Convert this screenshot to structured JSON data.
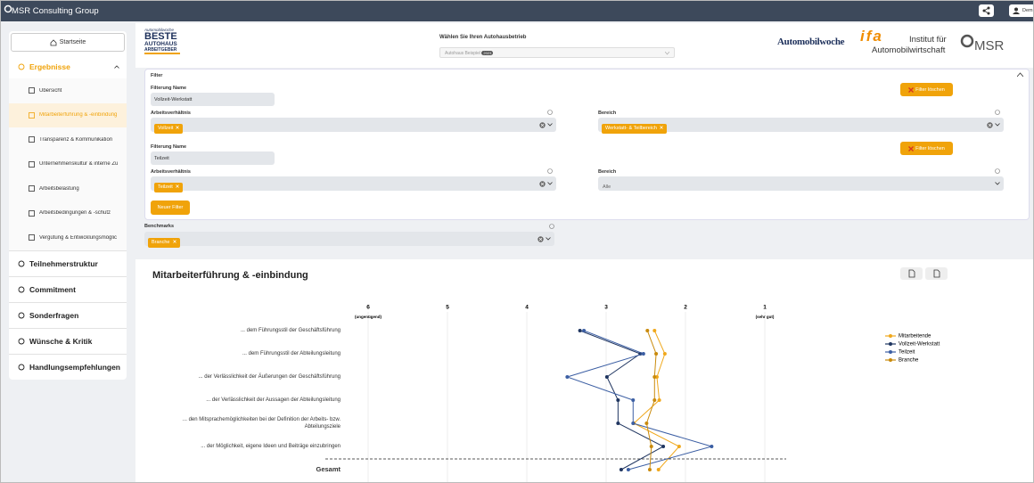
{
  "topbar": {
    "brand": "MSR Consulting Group",
    "user": "Dem"
  },
  "sidebar": {
    "home": "Startseite",
    "sections": [
      {
        "label": "Ergebnisse",
        "items": [
          {
            "label": "Übersicht"
          },
          {
            "label": "Mitarbeiterführung & -einbindung",
            "active": true
          },
          {
            "label": "Transparenz & Kommunikation"
          },
          {
            "label": "Unternehmenskultur & interne Zu"
          },
          {
            "label": "Arbeitsbelastung"
          },
          {
            "label": "Arbeitsbedingungen & -schutz"
          },
          {
            "label": "Vergütung & Entwicklungsmöglic"
          }
        ]
      },
      {
        "label": "Teilnehmerstruktur"
      },
      {
        "label": "Commitment"
      },
      {
        "label": "Sonderfragen"
      },
      {
        "label": "Wünsche & Kritik"
      },
      {
        "label": "Handlungsempfehlungen"
      }
    ]
  },
  "header": {
    "logo_left": [
      "Automobilwoche",
      "BESTE",
      "AUTOHAUS",
      "ARBEITGEBER"
    ],
    "select_label": "Wählen Sie Ihren Autohausbetrieb",
    "select_value": "Autohaus Beispiel",
    "select_badge": "2023",
    "logo_aw": "Automobilwoche",
    "logo_ifa": "ifa",
    "logo_ifa_line1": "Institut für",
    "logo_ifa_line2": "Automobilwirtschaft",
    "logo_msr": "MSR"
  },
  "filter": {
    "title": "Filter",
    "filters": [
      {
        "name_label": "Filterung Name",
        "name": "Vollzeit-Werkstatt",
        "delete": "Filter löschen",
        "fields": [
          {
            "label": "Arbeitsverhältnis",
            "chips": [
              "Vollzeit"
            ]
          },
          {
            "label": "Bereich",
            "chips": [
              "Werkstatt- & Teilbereich"
            ]
          }
        ]
      },
      {
        "name_label": "Filterung Name",
        "name": "Teilzeit",
        "delete": "Filter löschen",
        "fields": [
          {
            "label": "Arbeitsverhältnis",
            "chips": [
              "Teilzeit"
            ]
          },
          {
            "label": "Bereich",
            "value": "Alle"
          }
        ]
      }
    ],
    "new_filter": "Neuer Filter"
  },
  "benchmarks": {
    "label": "Benchmarks",
    "chips": [
      "Branche"
    ]
  },
  "chart_data": {
    "type": "line",
    "title": "Mitarbeiterführung & -einbindung",
    "categories": [
      "... dem Führungsstil der Geschäftsführung",
      "... dem Führungsstil der Abteilungsleitung",
      "... der Verlässlichkeit der Äußerungen der Geschäftsführung",
      "... der Verlässlichkeit der Aussagen der Abteilungsleitung",
      "... den Mitsprachemöglichkeiten bei der Definition der Arbeits- bzw. Abteilungsziele",
      "... der Möglichkeit, eigene Ideen und Beiträge einzubringen",
      "Gesamt"
    ],
    "xlim": [
      6,
      1
    ],
    "xticks": [
      6,
      5,
      4,
      3,
      2,
      1
    ],
    "xtick_notes": [
      {
        "value": 6,
        "label": "(ungenügend)"
      },
      {
        "value": 1,
        "label": "(sehr gut)"
      }
    ],
    "grid": true,
    "legend": "right",
    "series": [
      {
        "name": "Mitarbeitende",
        "color": "#f0a81c",
        "values": [
          2.39,
          2.26,
          2.36,
          2.33,
          2.65,
          2.08,
          2.34
        ]
      },
      {
        "name": "Vollzeit-Werkstatt",
        "color": "#1f3560",
        "values": [
          3.33,
          2.57,
          2.99,
          2.85,
          2.85,
          2.28,
          2.81
        ]
      },
      {
        "name": "Teilzeit",
        "color": "#3b5ea3",
        "values": [
          3.28,
          2.53,
          3.49,
          2.66,
          2.66,
          1.67,
          2.72
        ]
      },
      {
        "name": "Branche",
        "color": "#c98a0c",
        "values": [
          2.48,
          2.37,
          2.39,
          2.39,
          2.49,
          2.43,
          2.45
        ]
      }
    ]
  }
}
